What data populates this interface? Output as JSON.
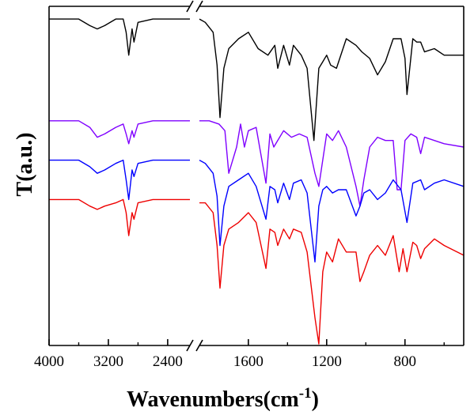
{
  "chart_data": {
    "type": "line",
    "title": "",
    "xlabel": "Wavenumbers(cm",
    "xlabel_sup": "-1",
    "xlabel_close": ")",
    "ylabel": "T(a.u.)",
    "x_reversed": true,
    "x_axis_break": [
      2100,
      1850
    ],
    "xlim_left": [
      4000,
      2100
    ],
    "xlim_right": [
      1850,
      500
    ],
    "x_ticks": [
      4000,
      3200,
      2400,
      1600,
      1200,
      800
    ],
    "x_tick_labels": [
      "4000",
      "3200",
      "2400",
      "1600",
      "1200",
      "800"
    ],
    "y_ticks_visible": false,
    "grid": false,
    "legend": "none",
    "series": [
      {
        "color": "#000000",
        "x": [
          4000,
          3600,
          3450,
          3350,
          3250,
          3100,
          3000,
          2960,
          2925,
          2880,
          2855,
          2800,
          2600,
          2400,
          2200,
          2100,
          1850,
          1820,
          1780,
          1760,
          1745,
          1725,
          1700,
          1650,
          1600,
          1550,
          1500,
          1465,
          1450,
          1420,
          1390,
          1370,
          1330,
          1300,
          1265,
          1240,
          1220,
          1200,
          1180,
          1150,
          1100,
          1050,
          1020,
          980,
          940,
          900,
          860,
          820,
          800,
          790,
          760,
          740,
          720,
          700,
          650,
          600,
          500
        ],
        "y": [
          99,
          99,
          97,
          96,
          97,
          99,
          99,
          95,
          88,
          96,
          92,
          98,
          99,
          99,
          99,
          99,
          99,
          98,
          95,
          85,
          69,
          84,
          90,
          93,
          95,
          90,
          88,
          91,
          84,
          91,
          85,
          91,
          88,
          84,
          62,
          84,
          86,
          88,
          85,
          84,
          93,
          91,
          89,
          87,
          82,
          86,
          93,
          93,
          87,
          76,
          93,
          92,
          92,
          89,
          90,
          88,
          88
        ]
      },
      {
        "color": "#7f00ff",
        "x": [
          4000,
          3600,
          3450,
          3350,
          3250,
          3100,
          3000,
          2960,
          2925,
          2880,
          2855,
          2800,
          2600,
          2400,
          2200,
          2100,
          1850,
          1800,
          1750,
          1720,
          1700,
          1660,
          1640,
          1620,
          1600,
          1560,
          1510,
          1490,
          1470,
          1440,
          1420,
          1380,
          1340,
          1300,
          1260,
          1240,
          1200,
          1170,
          1140,
          1100,
          1050,
          1030,
          1010,
          980,
          940,
          900,
          860,
          840,
          820,
          800,
          770,
          740,
          720,
          700,
          650,
          600,
          500
        ],
        "y": [
          68,
          68,
          66,
          63,
          64,
          66,
          67,
          64,
          61,
          65,
          63,
          67,
          68,
          68,
          68,
          68,
          68,
          68,
          67,
          65,
          52,
          60,
          67,
          60,
          65,
          66,
          49,
          64,
          60,
          63,
          65,
          63,
          64,
          63,
          52,
          48,
          64,
          62,
          65,
          60,
          48,
          42,
          50,
          60,
          63,
          62,
          62,
          47,
          47,
          62,
          64,
          63,
          58,
          63,
          62,
          61,
          60
        ]
      },
      {
        "color": "#0000ff",
        "x": [
          4000,
          3600,
          3450,
          3350,
          3250,
          3100,
          3000,
          2960,
          2925,
          2880,
          2855,
          2800,
          2600,
          2400,
          2200,
          2100,
          1850,
          1820,
          1780,
          1760,
          1745,
          1725,
          1700,
          1650,
          1600,
          1560,
          1510,
          1490,
          1465,
          1450,
          1420,
          1390,
          1370,
          1330,
          1300,
          1260,
          1240,
          1220,
          1200,
          1170,
          1140,
          1100,
          1050,
          1030,
          1010,
          980,
          940,
          900,
          860,
          820,
          790,
          760,
          720,
          700,
          650,
          600,
          500
        ],
        "y": [
          56,
          56,
          54,
          52,
          53,
          55,
          56,
          50,
          44,
          53,
          51,
          55,
          56,
          56,
          56,
          56,
          56,
          55,
          52,
          45,
          30,
          42,
          48,
          50,
          52,
          48,
          38,
          48,
          47,
          43,
          49,
          44,
          49,
          50,
          46,
          25,
          42,
          47,
          48,
          46,
          47,
          47,
          39,
          42,
          46,
          47,
          44,
          46,
          50,
          47,
          37,
          49,
          50,
          47,
          49,
          50,
          48
        ]
      },
      {
        "color": "#ee0000",
        "x": [
          4000,
          3600,
          3450,
          3350,
          3250,
          3100,
          3000,
          2960,
          2925,
          2880,
          2855,
          2800,
          2600,
          2400,
          2200,
          2100,
          1850,
          1820,
          1780,
          1760,
          1745,
          1725,
          1700,
          1650,
          1600,
          1560,
          1510,
          1490,
          1465,
          1450,
          1420,
          1390,
          1370,
          1330,
          1300,
          1260,
          1240,
          1220,
          1200,
          1170,
          1140,
          1100,
          1050,
          1030,
          1010,
          980,
          940,
          900,
          860,
          830,
          810,
          790,
          760,
          740,
          720,
          700,
          650,
          600,
          500
        ],
        "y": [
          44,
          44,
          42,
          41,
          42,
          43,
          44,
          40,
          33,
          40,
          38,
          43,
          44,
          44,
          44,
          44,
          43,
          43,
          40,
          30,
          17,
          30,
          35,
          37,
          40,
          37,
          23,
          35,
          34,
          30,
          35,
          32,
          35,
          34,
          28,
          8,
          0,
          22,
          28,
          25,
          32,
          28,
          28,
          19,
          22,
          27,
          30,
          27,
          33,
          22,
          29,
          22,
          31,
          30,
          26,
          29,
          32,
          30,
          27
        ]
      }
    ]
  }
}
